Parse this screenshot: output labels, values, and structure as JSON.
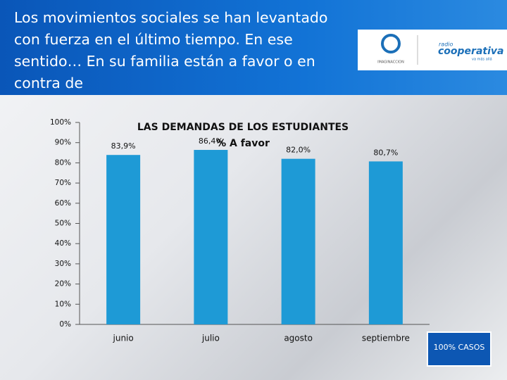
{
  "header": {
    "title": "Los movimientos sociales se han levantado con fuerza en el último tiempo. En ese sentido… En su familia están a favor o en contra de",
    "logo": {
      "left_text": "IMAGINACCION",
      "brand_small": "radio",
      "brand": "cooperativa",
      "tagline": "va más allá"
    }
  },
  "chart_data": {
    "type": "bar",
    "title": "LAS DEMANDAS DE LOS ESTUDIANTES",
    "categories": [
      "junio",
      "julio",
      "agosto",
      "septiembre"
    ],
    "series": [
      {
        "name": "% A favor",
        "color": "#1e9ad6",
        "values": [
          83.9,
          86.4,
          82.0,
          80.7
        ],
        "value_labels": [
          "83,9%",
          "86,4%",
          "82,0%",
          "80,7%"
        ]
      }
    ],
    "ylim": [
      0,
      100
    ],
    "yticks": [
      {
        "value": 0,
        "label": "0%"
      },
      {
        "value": 10,
        "label": "10%"
      },
      {
        "value": 20,
        "label": "20%"
      },
      {
        "value": 30,
        "label": "30%"
      },
      {
        "value": 40,
        "label": "40%"
      },
      {
        "value": 50,
        "label": "50%"
      },
      {
        "value": 60,
        "label": "60%"
      },
      {
        "value": 70,
        "label": "70%"
      },
      {
        "value": 80,
        "label": "80%"
      },
      {
        "value": 90,
        "label": "90%"
      },
      {
        "value": 100,
        "label": "100%"
      }
    ],
    "grid": false
  },
  "footer": {
    "note": "100% CASOS"
  }
}
